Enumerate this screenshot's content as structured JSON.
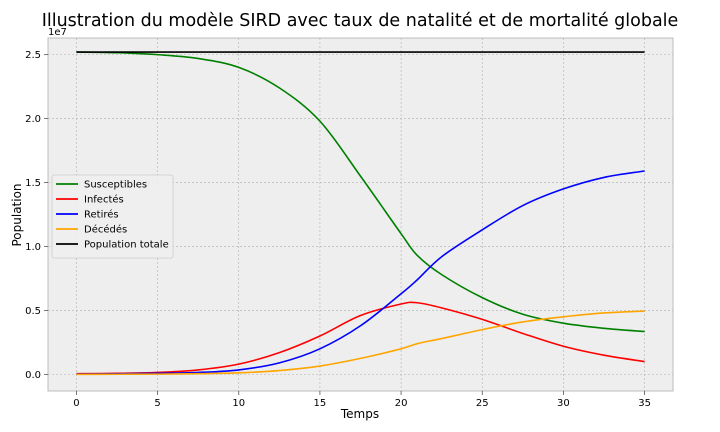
{
  "chart_data": {
    "type": "line",
    "title": "Illustration du modèle SIRD avec taux de natalité et de mortalité globale",
    "xlabel": "Temps",
    "ylabel": "Population",
    "y_scale_label": "1e7",
    "xlim": [
      -1.75,
      36.75
    ],
    "ylim": [
      -0.13,
      2.63
    ],
    "xticks": [
      0,
      5,
      10,
      15,
      20,
      25,
      30,
      35
    ],
    "yticks": [
      0.0,
      0.5,
      1.0,
      1.5,
      2.0,
      2.5
    ],
    "ytick_labels": [
      "0.0",
      "0.5",
      "1.0",
      "1.5",
      "2.0",
      "2.5"
    ],
    "grid": true,
    "legend_position": "center-left",
    "background": "#eeeeee",
    "x": [
      0,
      2.5,
      5,
      7.5,
      10,
      12.5,
      15,
      17.5,
      20,
      21,
      22.5,
      25,
      27.5,
      30,
      32.5,
      35
    ],
    "series": [
      {
        "name": "Susceptibles",
        "color": "#008000",
        "values": [
          2.52,
          2.515,
          2.5,
          2.47,
          2.4,
          2.24,
          1.98,
          1.55,
          1.1,
          0.93,
          0.78,
          0.6,
          0.47,
          0.4,
          0.36,
          0.335
        ]
      },
      {
        "name": "Infectés",
        "color": "#ff0000",
        "values": [
          0.005,
          0.008,
          0.015,
          0.035,
          0.08,
          0.17,
          0.3,
          0.46,
          0.55,
          0.56,
          0.52,
          0.43,
          0.32,
          0.22,
          0.15,
          0.1
        ]
      },
      {
        "name": "Retirés",
        "color": "#0000ff",
        "values": [
          0.002,
          0.004,
          0.008,
          0.015,
          0.035,
          0.09,
          0.2,
          0.38,
          0.63,
          0.74,
          0.92,
          1.13,
          1.32,
          1.45,
          1.54,
          1.59
        ]
      },
      {
        "name": "Décédés",
        "color": "#ffa500",
        "values": [
          0.0,
          0.001,
          0.002,
          0.005,
          0.012,
          0.03,
          0.065,
          0.125,
          0.2,
          0.24,
          0.28,
          0.35,
          0.41,
          0.45,
          0.48,
          0.495
        ]
      },
      {
        "name": "Population totale",
        "color": "#000000",
        "values": [
          2.52,
          2.52,
          2.52,
          2.52,
          2.52,
          2.52,
          2.52,
          2.52,
          2.52,
          2.52,
          2.52,
          2.52,
          2.52,
          2.52,
          2.52,
          2.52
        ]
      }
    ]
  }
}
